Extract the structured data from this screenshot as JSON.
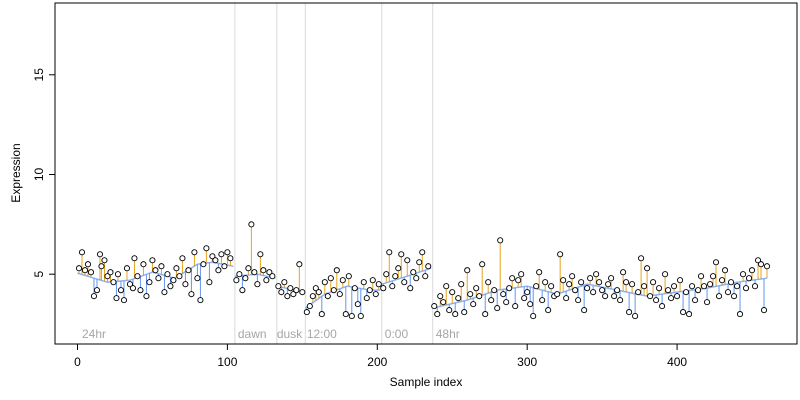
{
  "chart_data": {
    "type": "scatter",
    "xlabel": "Sample index",
    "ylabel": "Expression",
    "xlim": [
      -15,
      480
    ],
    "ylim": [
      1.5,
      18.6
    ],
    "xticks": [
      0,
      100,
      200,
      300,
      400
    ],
    "yticks": [
      5,
      10,
      15
    ],
    "grid": false,
    "legend": "none",
    "colors": {
      "above": "#e8a317",
      "below": "#6495ed",
      "fit": "#6495ed",
      "point_fill": "#ffffff",
      "point_stroke": "#000000",
      "divider": "#d9d9d9",
      "section_label": "#a6a6a6"
    },
    "section_dividers": [
      105,
      133,
      152,
      203,
      237
    ],
    "section_labels": [
      {
        "x": 3,
        "label": "24hr"
      },
      {
        "x": 107,
        "label": "dawn"
      },
      {
        "x": 133,
        "label": "dusk"
      },
      {
        "x": 153,
        "label": "12:00"
      },
      {
        "x": 205,
        "label": "0:00"
      },
      {
        "x": 239,
        "label": "48hr"
      }
    ],
    "baseline": [
      [
        0,
        5.05
      ],
      [
        20,
        4.6
      ],
      [
        35,
        4.7
      ],
      [
        50,
        5.1
      ],
      [
        65,
        4.8
      ],
      [
        80,
        5.5
      ],
      [
        90,
        5.6
      ],
      [
        104,
        5.4
      ],
      [
        105,
        4.9
      ],
      [
        120,
        5.0
      ],
      [
        132,
        4.8
      ],
      [
        133,
        4.4
      ],
      [
        151,
        4.1
      ],
      [
        152,
        3.3
      ],
      [
        165,
        4.0
      ],
      [
        180,
        4.4
      ],
      [
        195,
        4.2
      ],
      [
        202,
        4.2
      ],
      [
        203,
        4.5
      ],
      [
        220,
        4.9
      ],
      [
        236,
        5.3
      ],
      [
        237,
        3.3
      ],
      [
        260,
        3.7
      ],
      [
        280,
        4.2
      ],
      [
        300,
        4.4
      ],
      [
        320,
        4.0
      ],
      [
        340,
        4.5
      ],
      [
        360,
        4.2
      ],
      [
        380,
        3.9
      ],
      [
        400,
        4.1
      ],
      [
        420,
        4.3
      ],
      [
        440,
        4.6
      ],
      [
        460,
        4.8
      ]
    ],
    "points": [
      [
        1,
        5.3
      ],
      [
        3,
        6.1
      ],
      [
        5,
        5.2
      ],
      [
        7,
        5.5
      ],
      [
        9,
        5.1
      ],
      [
        11,
        3.9
      ],
      [
        13,
        4.2
      ],
      [
        15,
        6.0
      ],
      [
        16,
        5.4
      ],
      [
        18,
        5.7
      ],
      [
        20,
        4.9
      ],
      [
        22,
        5.1
      ],
      [
        24,
        4.6
      ],
      [
        26,
        3.8
      ],
      [
        27,
        5.0
      ],
      [
        29,
        4.2
      ],
      [
        31,
        3.7
      ],
      [
        33,
        5.3
      ],
      [
        35,
        4.5
      ],
      [
        37,
        4.3
      ],
      [
        38,
        5.8
      ],
      [
        40,
        4.9
      ],
      [
        42,
        4.2
      ],
      [
        44,
        5.5
      ],
      [
        46,
        3.9
      ],
      [
        48,
        4.6
      ],
      [
        50,
        5.7
      ],
      [
        52,
        5.2
      ],
      [
        54,
        4.8
      ],
      [
        56,
        5.4
      ],
      [
        58,
        4.1
      ],
      [
        60,
        5.0
      ],
      [
        62,
        4.4
      ],
      [
        64,
        4.7
      ],
      [
        66,
        5.3
      ],
      [
        68,
        4.9
      ],
      [
        70,
        5.8
      ],
      [
        72,
        4.5
      ],
      [
        74,
        5.2
      ],
      [
        76,
        4.0
      ],
      [
        78,
        6.1
      ],
      [
        80,
        4.8
      ],
      [
        82,
        3.7
      ],
      [
        84,
        5.5
      ],
      [
        86,
        6.3
      ],
      [
        88,
        4.6
      ],
      [
        90,
        5.9
      ],
      [
        92,
        5.7
      ],
      [
        94,
        5.2
      ],
      [
        96,
        6.0
      ],
      [
        98,
        5.4
      ],
      [
        100,
        6.1
      ],
      [
        102,
        5.8
      ],
      [
        106,
        4.7
      ],
      [
        108,
        5.0
      ],
      [
        110,
        4.2
      ],
      [
        112,
        4.8
      ],
      [
        114,
        5.3
      ],
      [
        116,
        7.5
      ],
      [
        118,
        5.1
      ],
      [
        120,
        4.5
      ],
      [
        122,
        6.0
      ],
      [
        124,
        5.2
      ],
      [
        126,
        4.7
      ],
      [
        128,
        5.1
      ],
      [
        130,
        4.9
      ],
      [
        134,
        4.4
      ],
      [
        136,
        4.1
      ],
      [
        138,
        4.6
      ],
      [
        140,
        3.9
      ],
      [
        142,
        4.3
      ],
      [
        144,
        4.0
      ],
      [
        146,
        4.2
      ],
      [
        148,
        5.5
      ],
      [
        150,
        4.1
      ],
      [
        153,
        3.1
      ],
      [
        155,
        3.4
      ],
      [
        157,
        3.9
      ],
      [
        159,
        4.3
      ],
      [
        161,
        4.1
      ],
      [
        163,
        3.0
      ],
      [
        165,
        4.6
      ],
      [
        167,
        3.9
      ],
      [
        169,
        4.8
      ],
      [
        171,
        4.2
      ],
      [
        173,
        5.2
      ],
      [
        175,
        4.0
      ],
      [
        177,
        4.7
      ],
      [
        179,
        3.0
      ],
      [
        181,
        4.9
      ],
      [
        183,
        2.9
      ],
      [
        185,
        4.3
      ],
      [
        187,
        3.5
      ],
      [
        189,
        2.9
      ],
      [
        191,
        4.6
      ],
      [
        193,
        3.8
      ],
      [
        195,
        4.2
      ],
      [
        197,
        4.7
      ],
      [
        199,
        4.0
      ],
      [
        201,
        4.5
      ],
      [
        204,
        4.3
      ],
      [
        206,
        5.0
      ],
      [
        208,
        6.1
      ],
      [
        210,
        4.4
      ],
      [
        212,
        4.9
      ],
      [
        214,
        5.3
      ],
      [
        216,
        6.0
      ],
      [
        218,
        4.6
      ],
      [
        220,
        5.7
      ],
      [
        222,
        4.3
      ],
      [
        224,
        5.1
      ],
      [
        226,
        4.8
      ],
      [
        228,
        5.6
      ],
      [
        230,
        6.1
      ],
      [
        232,
        4.9
      ],
      [
        234,
        5.4
      ],
      [
        238,
        3.4
      ],
      [
        240,
        3.0
      ],
      [
        242,
        3.9
      ],
      [
        244,
        3.6
      ],
      [
        246,
        4.4
      ],
      [
        248,
        3.2
      ],
      [
        250,
        4.1
      ],
      [
        252,
        3.0
      ],
      [
        254,
        3.8
      ],
      [
        256,
        4.5
      ],
      [
        258,
        3.1
      ],
      [
        260,
        5.2
      ],
      [
        262,
        4.0
      ],
      [
        264,
        3.5
      ],
      [
        266,
        4.3
      ],
      [
        268,
        3.9
      ],
      [
        270,
        5.5
      ],
      [
        272,
        3.0
      ],
      [
        274,
        4.6
      ],
      [
        276,
        3.7
      ],
      [
        278,
        4.2
      ],
      [
        280,
        3.3
      ],
      [
        282,
        6.7
      ],
      [
        284,
        4.0
      ],
      [
        286,
        3.6
      ],
      [
        288,
        4.3
      ],
      [
        290,
        4.8
      ],
      [
        292,
        3.4
      ],
      [
        294,
        4.7
      ],
      [
        296,
        5.0
      ],
      [
        298,
        3.8
      ],
      [
        300,
        4.1
      ],
      [
        302,
        3.5
      ],
      [
        304,
        2.9
      ],
      [
        306,
        4.4
      ],
      [
        308,
        5.1
      ],
      [
        310,
        3.7
      ],
      [
        312,
        4.6
      ],
      [
        314,
        3.2
      ],
      [
        316,
        4.4
      ],
      [
        318,
        3.9
      ],
      [
        320,
        4.0
      ],
      [
        322,
        6.0
      ],
      [
        324,
        4.7
      ],
      [
        326,
        3.8
      ],
      [
        328,
        4.5
      ],
      [
        330,
        4.9
      ],
      [
        332,
        4.2
      ],
      [
        334,
        3.7
      ],
      [
        336,
        4.6
      ],
      [
        338,
        3.2
      ],
      [
        340,
        4.3
      ],
      [
        342,
        4.8
      ],
      [
        344,
        4.1
      ],
      [
        346,
        5.0
      ],
      [
        348,
        4.6
      ],
      [
        350,
        4.2
      ],
      [
        352,
        3.9
      ],
      [
        354,
        4.5
      ],
      [
        356,
        4.8
      ],
      [
        358,
        3.9
      ],
      [
        360,
        4.2
      ],
      [
        362,
        3.7
      ],
      [
        364,
        5.1
      ],
      [
        366,
        4.6
      ],
      [
        368,
        3.1
      ],
      [
        370,
        4.5
      ],
      [
        372,
        2.9
      ],
      [
        374,
        4.1
      ],
      [
        376,
        5.8
      ],
      [
        378,
        4.4
      ],
      [
        380,
        5.3
      ],
      [
        382,
        3.9
      ],
      [
        384,
        4.6
      ],
      [
        386,
        3.7
      ],
      [
        388,
        4.3
      ],
      [
        390,
        3.4
      ],
      [
        392,
        5.0
      ],
      [
        394,
        4.2
      ],
      [
        396,
        3.8
      ],
      [
        398,
        4.4
      ],
      [
        400,
        3.9
      ],
      [
        402,
        4.7
      ],
      [
        404,
        3.1
      ],
      [
        406,
        4.1
      ],
      [
        408,
        3.0
      ],
      [
        410,
        4.4
      ],
      [
        412,
        3.7
      ],
      [
        414,
        4.2
      ],
      [
        416,
        4.9
      ],
      [
        418,
        4.4
      ],
      [
        420,
        3.6
      ],
      [
        422,
        4.5
      ],
      [
        424,
        4.9
      ],
      [
        426,
        5.6
      ],
      [
        428,
        3.9
      ],
      [
        430,
        4.7
      ],
      [
        432,
        5.2
      ],
      [
        434,
        4.1
      ],
      [
        436,
        4.6
      ],
      [
        438,
        3.9
      ],
      [
        440,
        4.4
      ],
      [
        442,
        3.0
      ],
      [
        444,
        5.0
      ],
      [
        446,
        4.3
      ],
      [
        448,
        4.8
      ],
      [
        450,
        5.2
      ],
      [
        452,
        4.4
      ],
      [
        454,
        5.7
      ],
      [
        456,
        5.5
      ],
      [
        458,
        3.2
      ],
      [
        460,
        5.4
      ]
    ]
  }
}
